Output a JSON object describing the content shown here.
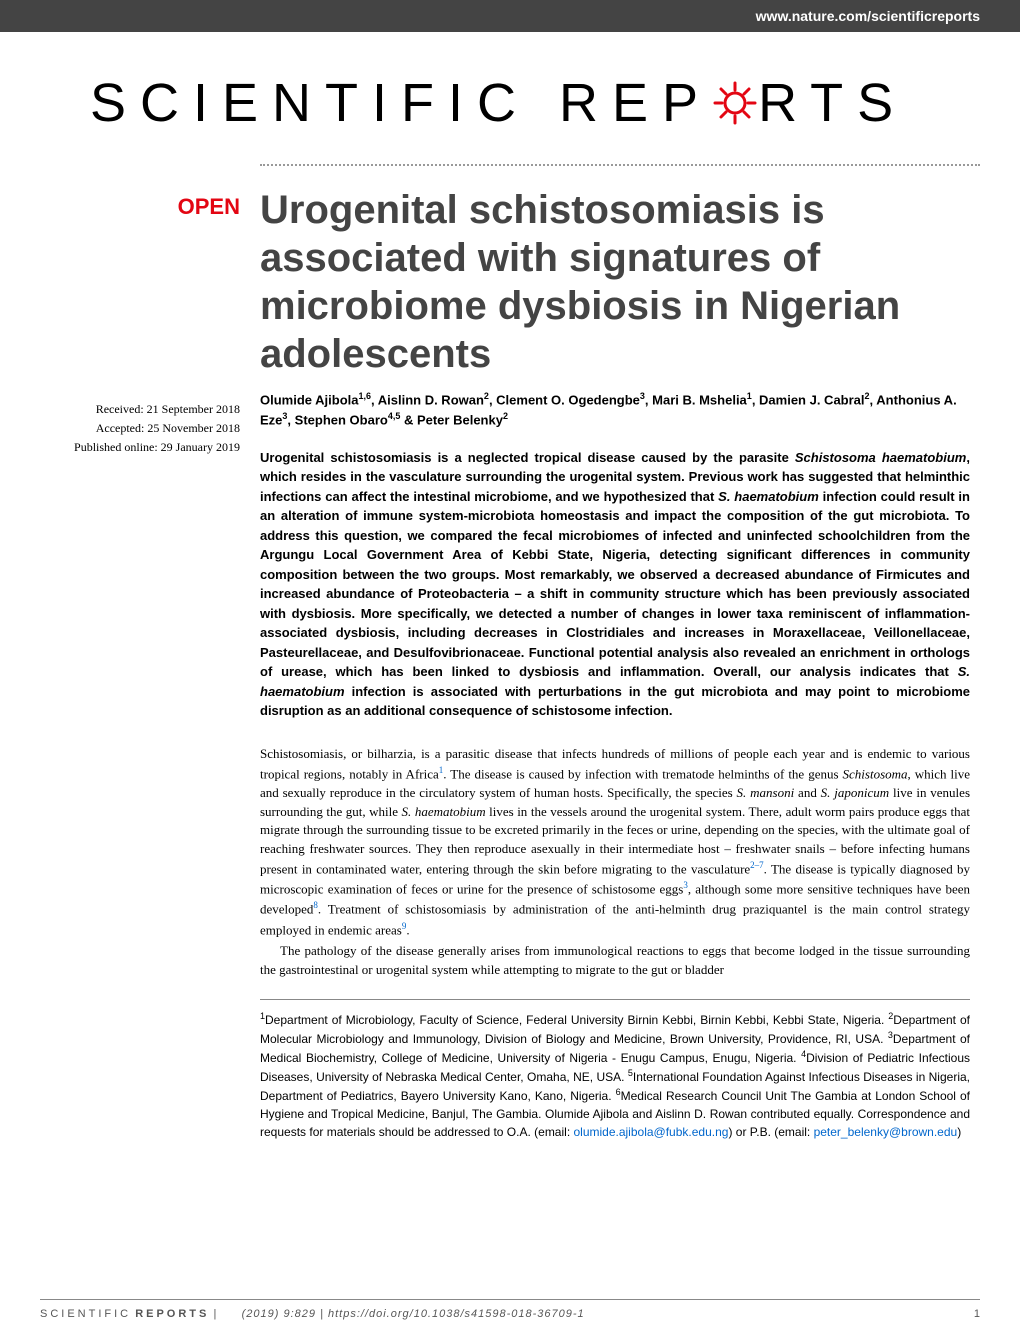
{
  "header": {
    "url": "www.nature.com/scientificreports",
    "journal_name_part1": "SCIENTIFIC",
    "journal_name_part2": "REP",
    "journal_name_part3": "RTS",
    "open_badge": "OPEN"
  },
  "dates": {
    "received": "Received: 21 September 2018",
    "accepted": "Accepted: 25 November 2018",
    "published": "Published online: 29 January 2019"
  },
  "article": {
    "title": "Urogenital schistosomiasis is associated with signatures of microbiome dysbiosis in Nigerian adolescents",
    "authors_html": "Olumide Ajibola<sup>1,6</sup>, Aislinn D. Rowan<sup>2</sup>, Clement O. Ogedengbe<sup>3</sup>, Mari B. Mshelia<sup>1</sup>, Damien J. Cabral<sup>2</sup>, Anthonius A. Eze<sup>3</sup>, Stephen Obaro<sup>4,5</sup> & Peter Belenky<sup>2</sup>",
    "abstract_html": "Urogenital schistosomiasis is a neglected tropical disease caused by the parasite <em>Schistosoma haematobium</em>, which resides in the vasculature surrounding the urogenital system. Previous work has suggested that helminthic infections can affect the intestinal microbiome, and we hypothesized that <em>S. haematobium</em> infection could result in an alteration of immune system-microbiota homeostasis and impact the composition of the gut microbiota. To address this question, we compared the fecal microbiomes of infected and uninfected schoolchildren from the Argungu Local Government Area of Kebbi State, Nigeria, detecting significant differences in community composition between the two groups. Most remarkably, we observed a decreased abundance of Firmicutes and increased abundance of Proteobacteria – a shift in community structure which has been previously associated with dysbiosis. More specifically, we detected a number of changes in lower taxa reminiscent of inflammation-associated dysbiosis, including decreases in Clostridiales and increases in Moraxellaceae, Veillonellaceae, Pasteurellaceae, and Desulfovibrionaceae. Functional potential analysis also revealed an enrichment in orthologs of urease, which has been linked to dysbiosis and inflammation. Overall, our analysis indicates that <em>S. haematobium</em> infection is associated with perturbations in the gut microbiota and may point to microbiome disruption as an additional consequence of schistosome infection.",
    "body_p1_html": "Schistosomiasis, or bilharzia, is a parasitic disease that infects hundreds of millions of people each year and is endemic to various tropical regions, notably in Africa<sup class='cite-link'>1</sup>. The disease is caused by infection with trematode helminths of the genus <em>Schistosoma</em>, which live and sexually reproduce in the circulatory system of human hosts. Specifically, the species <em>S. mansoni</em> and <em>S. japonicum</em> live in venules surrounding the gut, while <em>S. haematobium</em> lives in the vessels around the urogenital system. There, adult worm pairs produce eggs that migrate through the surrounding tissue to be excreted primarily in the feces or urine, depending on the species, with the ultimate goal of reaching freshwater sources. They then reproduce asexually in their intermediate host – freshwater snails – before infecting humans present in contaminated water, entering through the skin before migrating to the vasculature<sup class='cite-link'>2–7</sup>. The disease is typically diagnosed by microscopic examination of feces or urine for the presence of schistosome eggs<sup class='cite-link'>3</sup>, although some more sensitive techniques have been developed<sup class='cite-link'>8</sup>. Treatment of schistosomiasis by administration of the anti-helminth drug praziquantel is the main control strategy employed in endemic areas<sup class='cite-link'>9</sup>.",
    "body_p2_html": "The pathology of the disease generally arises from immunological reactions to eggs that become lodged in the tissue surrounding the gastrointestinal or urogenital system while attempting to migrate to the gut or bladder",
    "affiliations_html": "<sup>1</sup>Department of Microbiology, Faculty of Science, Federal University Birnin Kebbi, Birnin Kebbi, Kebbi State, Nigeria. <sup>2</sup>Department of Molecular Microbiology and Immunology, Division of Biology and Medicine, Brown University, Providence, RI, USA. <sup>3</sup>Department of Medical Biochemistry, College of Medicine, University of Nigeria - Enugu Campus, Enugu, Nigeria. <sup>4</sup>Division of Pediatric Infectious Diseases, University of Nebraska Medical Center, Omaha, NE, USA. <sup>5</sup>International Foundation Against Infectious Diseases in Nigeria, Department of Pediatrics, Bayero University Kano, Kano, Nigeria. <sup>6</sup>Medical Research Council Unit The Gambia at London School of Hygiene and Tropical Medicine, Banjul, The Gambia. Olumide Ajibola and Aislinn D. Rowan contributed equally. Correspondence and requests for materials should be addressed to O.A. (email: <span class='email-link'>olumide.ajibola@fubk.edu.ng</span>) or P.B. (email: <span class='email-link'>peter_belenky@brown.edu</span>)"
  },
  "footer": {
    "journal_label": "SCIENTIFIC",
    "reports_label": "REPORTS",
    "citation": "(2019) 9:829 | https://doi.org/10.1038/s41598-018-36709-1",
    "page_number": "1"
  },
  "colors": {
    "banner_bg": "#444444",
    "open_red": "#e30613",
    "title_gray": "#444444",
    "link_blue": "#0066cc",
    "text_black": "#000000",
    "footer_gray": "#555555"
  }
}
